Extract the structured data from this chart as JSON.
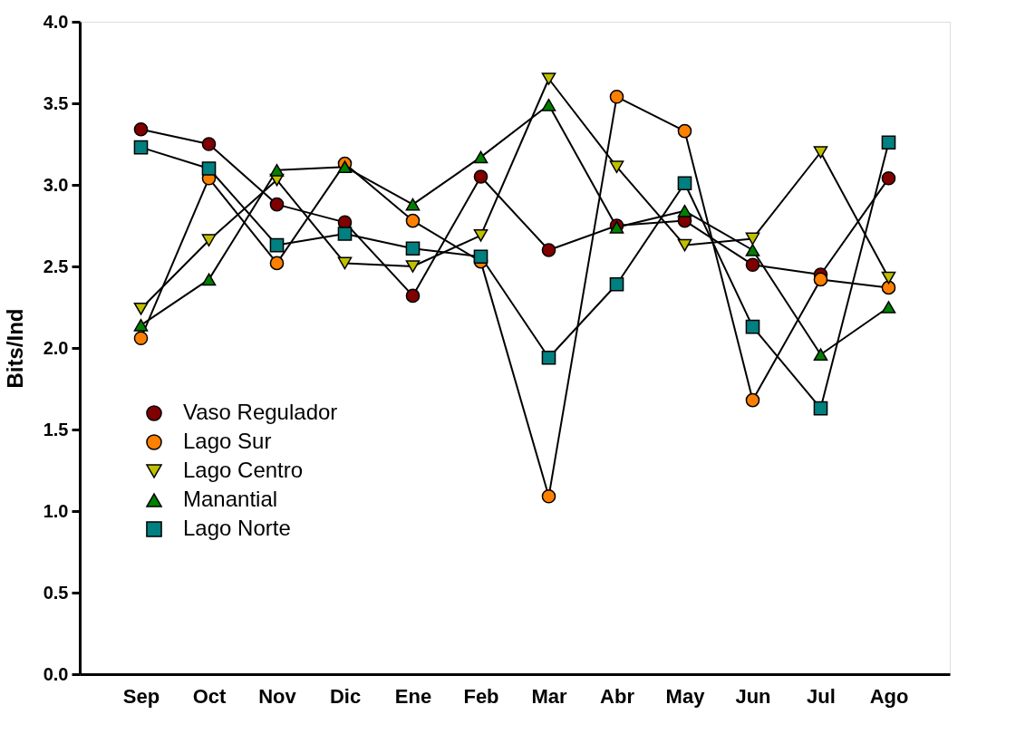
{
  "chart_data": {
    "type": "line",
    "ylabel": "Bits/Ind",
    "categories": [
      "Sep",
      "Oct",
      "Nov",
      "Dic",
      "Ene",
      "Feb",
      "Mar",
      "Abr",
      "May",
      "Jun",
      "Jul",
      "Ago"
    ],
    "series": [
      {
        "name": "Vaso Regulador",
        "color": "#800000",
        "marker": "circle",
        "values": [
          3.34,
          3.25,
          2.88,
          2.77,
          2.32,
          3.05,
          2.6,
          2.75,
          2.78,
          2.51,
          2.45,
          3.04
        ]
      },
      {
        "name": "Lago Sur",
        "color": "#ff8000",
        "marker": "circle",
        "values": [
          2.06,
          3.04,
          2.52,
          3.13,
          2.78,
          2.53,
          1.09,
          3.54,
          3.33,
          1.68,
          2.42,
          2.37
        ]
      },
      {
        "name": "Lago Centro",
        "color": "#c0c000",
        "marker": "triangle-down",
        "values": [
          2.24,
          2.66,
          3.03,
          2.52,
          2.5,
          2.69,
          3.65,
          3.11,
          2.63,
          2.67,
          3.2,
          2.43
        ]
      },
      {
        "name": "Manantial",
        "color": "#008000",
        "marker": "triangle",
        "values": [
          2.14,
          2.42,
          3.09,
          3.11,
          2.88,
          3.17,
          3.49,
          2.74,
          2.84,
          2.6,
          1.96,
          2.25
        ]
      },
      {
        "name": "Lago Norte",
        "color": "#008080",
        "marker": "square",
        "values": [
          3.23,
          3.1,
          2.63,
          2.7,
          2.61,
          2.56,
          1.94,
          2.39,
          3.01,
          2.13,
          1.63,
          3.26
        ]
      }
    ],
    "ylim": [
      0,
      4
    ],
    "yticks": [
      {
        "value": 0,
        "label": "0.0"
      },
      0.5,
      {
        "value": 1,
        "label": "1.0"
      },
      1.5,
      {
        "value": 2,
        "label": "2.0"
      },
      2.5,
      {
        "value": 3,
        "label": "3.0"
      },
      3.5,
      {
        "value": 4,
        "label": "4.0"
      }
    ],
    "grid": false,
    "legend": "left",
    "line_style": "solid"
  }
}
